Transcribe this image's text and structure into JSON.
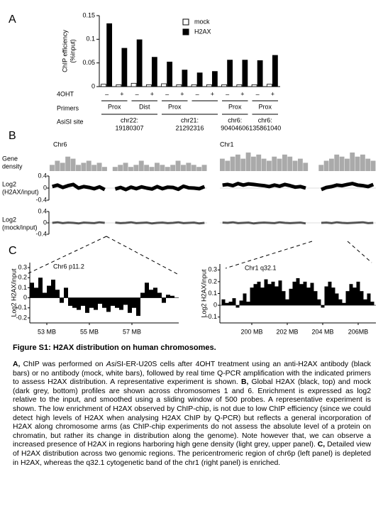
{
  "panel_labels": [
    "A",
    "B",
    "C"
  ],
  "chart_data": [
    {
      "type": "bar",
      "ylabel": [
        "ChIP efficiency",
        "(%input)"
      ],
      "ylim": [
        0,
        0.15
      ],
      "yticks": [
        0,
        0.05,
        0.1,
        0.15
      ],
      "categories": [
        "–",
        "+",
        "–",
        "+",
        "–",
        "+",
        "–",
        "+",
        "–",
        "+",
        "–",
        "+"
      ],
      "series": [
        {
          "name": "mock",
          "color": "#ffffff",
          "values": [
            0.005,
            0.004,
            0.007,
            0.004,
            0.006,
            0.004,
            0.004,
            0.004,
            0.004,
            0.004,
            0.004,
            0.005
          ]
        },
        {
          "name": "H2AX",
          "color": "#000000",
          "values": [
            0.133,
            0.081,
            0.099,
            0.062,
            0.052,
            0.035,
            0.029,
            0.032,
            0.056,
            0.056,
            0.055,
            0.066
          ]
        }
      ],
      "row_labels": {
        "treatment": "4OHT",
        "primers": "Primers",
        "site": "AsiSI site"
      },
      "primers": [
        "Prox",
        "Dist",
        "Prox",
        null,
        "Prox",
        "Prox"
      ],
      "sites": [
        [
          "chr22:",
          "19180307"
        ],
        [
          "chr21:",
          "21292316"
        ],
        [
          "chr6:",
          "90404606"
        ],
        [
          "chr6:",
          "135861040"
        ]
      ]
    },
    {
      "type": "tracks",
      "rows": [
        {
          "label": [
            "Gene",
            "density"
          ],
          "ylim": [
            0,
            1
          ],
          "color": "#aaaaaa"
        },
        {
          "label": [
            "Log2",
            "(H2AX/input)"
          ],
          "ylim": [
            -0.4,
            0.4
          ],
          "yticks": [
            0.4,
            0,
            -0.4
          ],
          "color": "#000000"
        },
        {
          "label": [
            "Log2",
            "(mock/input)"
          ],
          "ylim": [
            -0.4,
            0.4
          ],
          "yticks": [
            0.4,
            0,
            -0.4
          ],
          "color": "#555555"
        }
      ],
      "chromosomes": [
        {
          "name": "Chr6",
          "gene_density": [
            0.3,
            0.5,
            0.4,
            0.7,
            0.6,
            0.3,
            0.4,
            0.5,
            0.3,
            0.4,
            0.2,
            null,
            0.2,
            0.3,
            0.4,
            0.2,
            0.3,
            0.5,
            0.3,
            0.2,
            0.4,
            0.3,
            0.2,
            0.3,
            0.5,
            0.3,
            0.4,
            0.3,
            0.2,
            0.3
          ],
          "h2ax": [
            0.05,
            0.1,
            0.02,
            0.08,
            0.12,
            0.0,
            0.05,
            0.02,
            -0.02,
            0.04,
            -0.05,
            null,
            -0.03,
            0.02,
            -0.05,
            0.03,
            -0.02,
            0.04,
            0.0,
            -0.03,
            0.05,
            -0.02,
            0.03,
            0.02,
            -0.04,
            0.06,
            0.01,
            0.0,
            -0.02,
            0.05
          ],
          "mock": [
            0.0,
            0.02,
            -0.01,
            0.01,
            0.0,
            -0.02,
            0.01,
            0.0,
            -0.01,
            0.02,
            0.0,
            null,
            0.01,
            -0.01,
            0.0,
            0.02,
            -0.01,
            0.0,
            0.01,
            -0.02,
            0.0,
            0.01,
            -0.01,
            0.0,
            0.02,
            -0.01,
            0.0,
            0.01,
            -0.02,
            0.0
          ]
        },
        {
          "name": "Chr1",
          "gene_density": [
            0.6,
            0.5,
            0.7,
            0.8,
            0.6,
            0.9,
            0.7,
            0.8,
            0.6,
            0.5,
            0.7,
            0.6,
            0.8,
            0.7,
            0.5,
            0.6,
            0.4,
            null,
            null,
            0.3,
            0.5,
            0.6,
            0.8,
            0.7,
            0.6,
            0.9,
            0.7,
            0.8,
            0.6,
            0.5
          ],
          "h2ax": [
            0.1,
            0.12,
            0.08,
            0.15,
            0.1,
            0.14,
            0.12,
            0.1,
            0.08,
            0.05,
            0.1,
            0.06,
            0.12,
            0.08,
            0.03,
            0.05,
            0.0,
            null,
            null,
            -0.05,
            0.02,
            0.05,
            0.1,
            0.08,
            0.12,
            0.15,
            0.1,
            0.08,
            0.05,
            0.12
          ],
          "mock": [
            0.01,
            0.0,
            0.02,
            -0.01,
            0.0,
            0.01,
            -0.02,
            0.0,
            0.01,
            0.0,
            -0.01,
            0.02,
            0.0,
            -0.01,
            0.0,
            0.01,
            -0.02,
            null,
            null,
            0.0,
            0.01,
            -0.01,
            0.02,
            0.0,
            -0.01,
            0.0,
            0.01,
            0.02,
            -0.01,
            0.0
          ]
        }
      ]
    },
    {
      "type": "profile",
      "title": "Chr6 p11.2",
      "ylabel": "Log2 H2AX/input",
      "ylim": [
        -0.25,
        0.35
      ],
      "yticks": [
        -0.2,
        -0.1,
        0,
        0.1,
        0.2,
        0.3
      ],
      "xlim": [
        52.2,
        59.2
      ],
      "xticks": [
        {
          "value": 53,
          "label": "53 MB"
        },
        {
          "value": 55,
          "label": "55 MB"
        },
        {
          "value": 57,
          "label": "57 MB"
        }
      ],
      "x": [
        52.3,
        52.5,
        52.7,
        52.9,
        53.1,
        53.3,
        53.5,
        53.7,
        53.9,
        54.1,
        54.3,
        54.5,
        54.7,
        54.9,
        55.1,
        55.3,
        55.5,
        55.7,
        55.9,
        56.1,
        56.3,
        56.5,
        56.7,
        56.9,
        57.1,
        57.3,
        57.5,
        57.7,
        57.9,
        58.1,
        58.3,
        58.5,
        58.7,
        58.9
      ],
      "values": [
        0.15,
        0.1,
        0.2,
        0.05,
        0.12,
        0.18,
        0.08,
        -0.05,
        0.1,
        -0.08,
        -0.1,
        -0.12,
        -0.08,
        -0.15,
        -0.1,
        -0.12,
        -0.06,
        -0.1,
        -0.14,
        -0.08,
        -0.1,
        -0.12,
        -0.07,
        -0.15,
        -0.1,
        -0.18,
        0.05,
        0.15,
        0.08,
        0.1,
        0.05,
        -0.05,
        0.03,
        0.02
      ]
    },
    {
      "type": "profile",
      "title": "Chr1 q32.1",
      "ylabel": "Log2 H2AX/input",
      "ylim": [
        -0.15,
        0.35
      ],
      "yticks": [
        -0.1,
        0,
        0.1,
        0.2,
        0.3
      ],
      "xlim": [
        198.2,
        207
      ],
      "xticks": [
        {
          "value": 200,
          "label": "200 MB"
        },
        {
          "value": 202,
          "label": "202 MB"
        },
        {
          "value": 204,
          "label": "204 MB"
        },
        {
          "value": 206,
          "label": "206MB"
        }
      ],
      "x": [
        198.4,
        198.6,
        198.8,
        199,
        199.2,
        199.4,
        199.6,
        199.8,
        200,
        200.2,
        200.4,
        200.6,
        200.8,
        201,
        201.2,
        201.4,
        201.6,
        201.8,
        202,
        202.2,
        202.4,
        202.6,
        202.8,
        203,
        203.2,
        203.4,
        203.6,
        203.8,
        204,
        204.2,
        204.4,
        204.6,
        204.8,
        205,
        205.2,
        205.4,
        205.6,
        205.8,
        206,
        206.2,
        206.4,
        206.6,
        206.8
      ],
      "values": [
        0.05,
        0.02,
        0.03,
        0.06,
        -0.02,
        0.04,
        0.1,
        0.03,
        0.15,
        0.18,
        0.2,
        0.15,
        0.22,
        0.18,
        0.2,
        0.16,
        0.21,
        0.12,
        0.05,
        0.14,
        0.2,
        0.23,
        0.18,
        0.2,
        0.15,
        0.19,
        0.12,
        0.05,
        -0.02,
        0.16,
        0.2,
        0.15,
        0.1,
        0.05,
        0.02,
        0.12,
        0.18,
        0.15,
        0.2,
        0.12,
        0.05,
        0.1,
        0.03
      ]
    }
  ],
  "caption": {
    "title": "Figure S1: H2AX distribution on human chromosomes.",
    "segments": [
      "A,",
      " ChIP was performed on ",
      "Asi",
      "SI-ER-U20S cells after 4OHT treatment using an anti-H2AX antibody (black bars) or no antibody (mock, white bars), followed by real time Q-PCR amplification with the indicated primers to assess H2AX distribution. A representative experiment is shown. ",
      "B,",
      " Global H2AX (black, top) and mock (dark grey, bottom) profiles are shown across chromosomes 1 and 6. Enrichment is expressed as log2 relative to the input, and smoothed using a sliding window of 500 probes. A representative experiment is shown. The low enrichment of H2AX observed by ChIP-chip, is not due to low ChIP efficiency (since we could detect high levels of H2AX when analysing H2AX ChIP by Q-PCR) but reflects a general incorporation of H2AX along chromosome arms (as ChIP-chip experiments do not assess the absolute level of a protein on chromatin, but rather its change in distribution along the genome). Note however that, we can observe a increased presence of H2AX in regions harboring high gene density (light grey, upper panel). ",
      "C,",
      " Detailed view of H2AX distribution across two genomic regions. The pericentromeric region of chr6p (left panel) is depleted in H2AX, whereas the q32.1 cytogenetic band of the chr1 (right panel) is enriched."
    ]
  }
}
